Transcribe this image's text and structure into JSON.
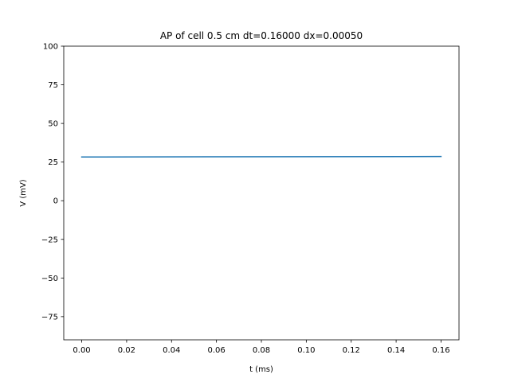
{
  "chart_data": {
    "type": "line",
    "title": "AP of cell 0.5 cm dt=0.16000 dx=0.00050",
    "xlabel": "t (ms)",
    "ylabel": "V (mV)",
    "xlim": [
      -0.008,
      0.168
    ],
    "ylim": [
      -90,
      100
    ],
    "x_ticks": [
      0.0,
      0.02,
      0.04,
      0.06,
      0.08,
      0.1,
      0.12,
      0.14,
      0.16
    ],
    "x_tick_labels": [
      "0.00",
      "0.02",
      "0.04",
      "0.06",
      "0.08",
      "0.10",
      "0.12",
      "0.14",
      "0.16"
    ],
    "y_ticks": [
      -75,
      -50,
      -25,
      0,
      25,
      50,
      75,
      100
    ],
    "y_tick_labels": [
      "−75",
      "−50",
      "−25",
      "0",
      "25",
      "50",
      "75",
      "100"
    ],
    "grid": false,
    "series": [
      {
        "color": "#1f77b4",
        "x": [
          0.0,
          0.16
        ],
        "y": [
          28.3,
          28.6
        ]
      }
    ]
  }
}
